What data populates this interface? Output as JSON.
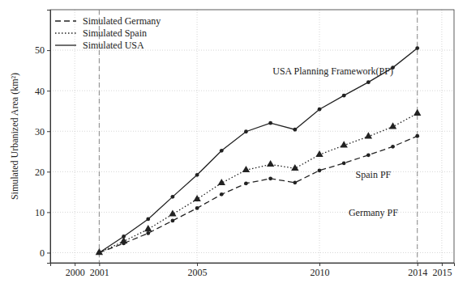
{
  "chart_data": {
    "type": "line",
    "y_label": "Simulated Urbanized Area (km²)",
    "x": [
      2001,
      2002,
      2003,
      2004,
      2005,
      2006,
      2007,
      2008,
      2009,
      2010,
      2011,
      2012,
      2013,
      2014
    ],
    "series": [
      {
        "name": "Simulated Germany",
        "color": "#222222",
        "line_style": "dashed",
        "marker": "circle",
        "values": [
          0,
          2.3,
          4.8,
          7.9,
          11,
          14.4,
          17.1,
          18.3,
          17.3,
          20.3,
          22.1,
          24.1,
          26.2,
          28.8
        ]
      },
      {
        "name": "Simulated Spain",
        "color": "#222222",
        "line_style": "dotted",
        "marker": "triangle",
        "values": [
          0,
          2.8,
          5.8,
          9.5,
          13.2,
          17.2,
          20.4,
          21.8,
          20.8,
          24.2,
          26.5,
          28.7,
          31.1,
          34.4
        ]
      },
      {
        "name": "Simulated USA",
        "color": "#222222",
        "line_style": "solid",
        "marker": "circle",
        "values": [
          0,
          4,
          8.3,
          13.8,
          19.2,
          25.2,
          29.9,
          32,
          30.4,
          35.4,
          38.8,
          42.1,
          45.7,
          50.5
        ]
      }
    ],
    "annotations": [
      "USA Planning Framework(PF)",
      "Spain PF",
      "Germany PF"
    ],
    "vlines": [
      2001,
      2014
    ],
    "xlim": [
      1999,
      2015.5
    ],
    "xticks": [
      2000,
      2001,
      2005,
      2010,
      2014,
      2015
    ],
    "ylim": [
      -2.5,
      60
    ],
    "yticks": [
      0,
      10,
      20,
      30,
      40,
      50
    ],
    "grid": true,
    "legend": "upper left"
  }
}
